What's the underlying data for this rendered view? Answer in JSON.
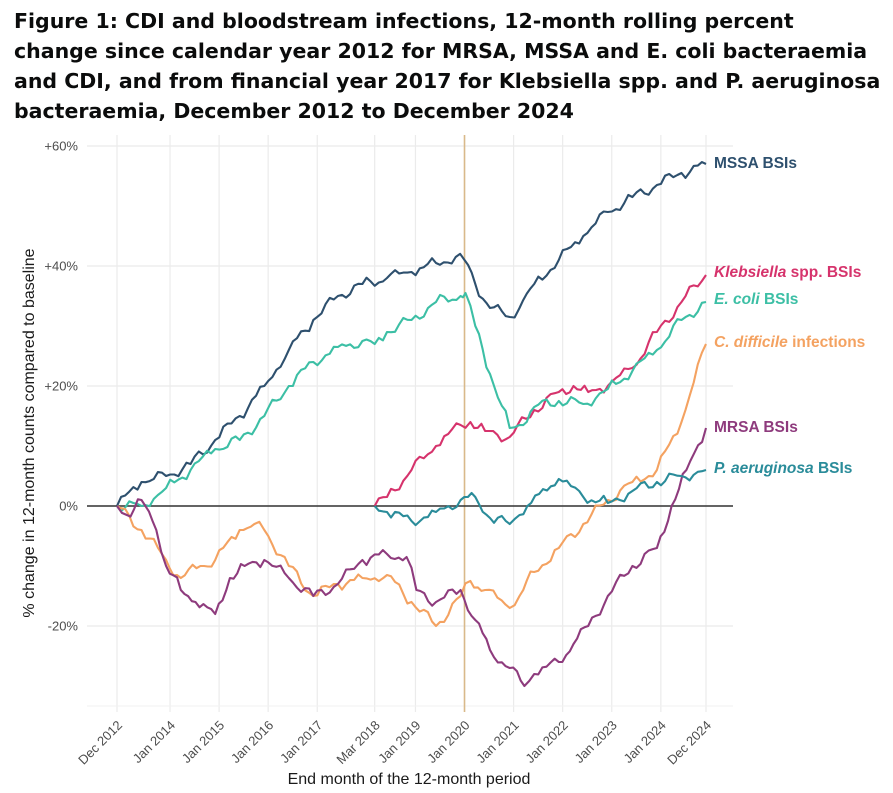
{
  "title": "Figure 1: CDI and bloodstream infections, 12-month rolling percent change since calendar year 2012 for MRSA, MSSA and E. coli bacteraemia and CDI, and from financial year 2017 for Klebsiella spp. and P. aeruginosa bacteraemia, December 2012 to December 2024",
  "chart_data": {
    "type": "line",
    "title": "Figure 1: CDI and bloodstream infections, 12-month rolling percent change since calendar year 2012 for MRSA, MSSA and E. coli bacteraemia and CDI, and from financial year 2017 for Klebsiella spp. and P. aeruginosa bacteraemia, December 2012 to December 2024",
    "xlabel": "End month of the 12-month period",
    "ylabel": "% change in 12-month counts compared to baseline",
    "x_unit": "years since Dec 2012",
    "xlim": [
      -0.45,
      12.3
    ],
    "ylim": [
      -32,
      61
    ],
    "x_ticks": [
      {
        "x": 0.0,
        "label": "Dec 2012"
      },
      {
        "x": 1.08,
        "label": "Jan 2014"
      },
      {
        "x": 2.08,
        "label": "Jan 2015"
      },
      {
        "x": 3.08,
        "label": "Jan 2016"
      },
      {
        "x": 4.08,
        "label": "Jan 2017"
      },
      {
        "x": 5.25,
        "label": "Mar 2018"
      },
      {
        "x": 6.08,
        "label": "Jan 2019"
      },
      {
        "x": 7.08,
        "label": "Jan 2020"
      },
      {
        "x": 8.08,
        "label": "Jan 2021"
      },
      {
        "x": 9.08,
        "label": "Jan 2022"
      },
      {
        "x": 10.08,
        "label": "Jan 2023"
      },
      {
        "x": 11.08,
        "label": "Jan 2024"
      },
      {
        "x": 12.0,
        "label": "Dec 2024"
      }
    ],
    "y_ticks": [
      {
        "y": 60,
        "label": "+60%"
      },
      {
        "y": 40,
        "label": "+40%"
      },
      {
        "y": 20,
        "label": "+20%"
      },
      {
        "y": 0,
        "label": "0%"
      },
      {
        "y": -20,
        "label": "-20%"
      }
    ],
    "zero_line": 0,
    "reference_line_x": 7.08,
    "grid": true,
    "series": [
      {
        "name": "MSSA BSIs",
        "label_parts": [
          {
            "text": "MSSA BSIs",
            "italic": false
          }
        ],
        "color": "#2e506e",
        "x": [
          0,
          0.5,
          1.0,
          1.5,
          2.0,
          2.5,
          3.0,
          3.5,
          4.0,
          4.5,
          5.0,
          5.5,
          6.0,
          6.5,
          6.9,
          7.08,
          7.3,
          7.6,
          8.0,
          8.2,
          8.5,
          9.0,
          9.5,
          10.0,
          10.5,
          11.0,
          11.5,
          12.0
        ],
        "y": [
          0,
          4,
          5,
          7,
          11,
          15,
          20,
          26,
          31,
          35,
          37,
          38,
          39,
          40.5,
          41.5,
          41,
          37,
          33,
          31.5,
          33,
          37,
          41,
          45,
          49,
          51.5,
          53.5,
          55.5,
          57
        ]
      },
      {
        "name": "Klebsiella spp. BSIs",
        "label_parts": [
          {
            "text": "Klebsiella",
            "italic": true
          },
          {
            "text": " spp. BSIs",
            "italic": false
          }
        ],
        "color": "#d6336c",
        "x": [
          5.25,
          5.5,
          6.0,
          6.5,
          7.0,
          7.2,
          7.5,
          8.0,
          8.5,
          9.0,
          9.3,
          9.6,
          10.0,
          10.5,
          11.0,
          11.5,
          12.0
        ],
        "y": [
          0,
          1.5,
          6,
          10,
          13.5,
          14,
          12.5,
          11.5,
          16,
          19,
          20,
          19,
          20,
          23,
          29,
          34,
          38.5
        ]
      },
      {
        "name": "E. coli BSIs",
        "label_parts": [
          {
            "text": "E. coli",
            "italic": true
          },
          {
            "text": " BSIs",
            "italic": false
          }
        ],
        "color": "#3cbfa5",
        "x": [
          0,
          0.5,
          1.0,
          1.5,
          2.0,
          2.5,
          3.0,
          3.5,
          4.0,
          4.5,
          5.0,
          5.25,
          5.5,
          6.0,
          6.5,
          7.0,
          7.1,
          7.3,
          7.6,
          8.0,
          8.2,
          8.5,
          9.0,
          9.5,
          10.0,
          10.5,
          11.0,
          11.5,
          12.0
        ],
        "y": [
          0,
          0,
          3,
          6,
          9.5,
          11,
          15,
          20,
          24,
          26.5,
          27.5,
          27,
          29,
          31,
          34,
          35,
          35.5,
          30,
          22,
          13,
          13.5,
          16.5,
          17.5,
          17,
          19.5,
          22.5,
          26,
          31,
          34
        ]
      },
      {
        "name": "C. difficile infections",
        "label_parts": [
          {
            "text": "C. difficile",
            "italic": true
          },
          {
            "text": " infections",
            "italic": false
          }
        ],
        "color": "#f4a261",
        "x": [
          0,
          0.5,
          1.0,
          1.3,
          1.7,
          2.0,
          2.5,
          2.8,
          3.0,
          3.5,
          4.0,
          4.5,
          5.0,
          5.5,
          6.0,
          6.5,
          7.0,
          7.2,
          7.5,
          8.0,
          8.2,
          8.5,
          9.0,
          9.5,
          10.0,
          10.5,
          11.0,
          11.5,
          12.0
        ],
        "y": [
          0,
          -4,
          -9,
          -12,
          -10,
          -9,
          -4,
          -3,
          -4,
          -10,
          -15,
          -13,
          -12,
          -11.5,
          -16,
          -20,
          -15,
          -12.5,
          -14,
          -17,
          -15,
          -11,
          -7,
          -3,
          1,
          4,
          6,
          14,
          27
        ]
      },
      {
        "name": "MRSA BSIs",
        "label_parts": [
          {
            "text": "MRSA BSIs",
            "italic": false
          }
        ],
        "color": "#8e3b7d",
        "x": [
          0,
          0.2,
          0.5,
          0.8,
          1.0,
          1.3,
          1.6,
          2.0,
          2.3,
          2.6,
          3.0,
          3.5,
          4.0,
          4.5,
          5.0,
          5.5,
          5.9,
          6.1,
          6.5,
          7.0,
          7.3,
          7.6,
          8.0,
          8.3,
          8.5,
          9.0,
          9.3,
          9.6,
          10.0,
          10.5,
          11.0,
          11.3,
          11.6,
          12.0
        ],
        "y": [
          0,
          -1.5,
          1,
          -4,
          -10,
          -14,
          -16,
          -18,
          -12,
          -10,
          -9,
          -12,
          -15,
          -13,
          -9,
          -8,
          -8.5,
          -14,
          -16,
          -14,
          -19,
          -24,
          -27,
          -30,
          -28,
          -26,
          -23,
          -20,
          -15,
          -10,
          -7,
          0,
          6,
          13
        ]
      },
      {
        "name": "P. aeruginosa BSIs",
        "label_parts": [
          {
            "text": "P. aeruginosa",
            "italic": true
          },
          {
            "text": " BSIs",
            "italic": false
          }
        ],
        "color": "#2a8c9a",
        "x": [
          5.25,
          5.5,
          6.0,
          6.5,
          7.0,
          7.3,
          7.6,
          8.0,
          8.2,
          8.6,
          9.0,
          9.5,
          10.0,
          10.5,
          11.0,
          11.5,
          12.0
        ],
        "y": [
          0,
          -1,
          -2.5,
          -1,
          1,
          1.5,
          -2,
          -3,
          -1.5,
          2,
          4.5,
          1.5,
          0.5,
          2.5,
          4,
          5,
          6
        ]
      }
    ]
  }
}
